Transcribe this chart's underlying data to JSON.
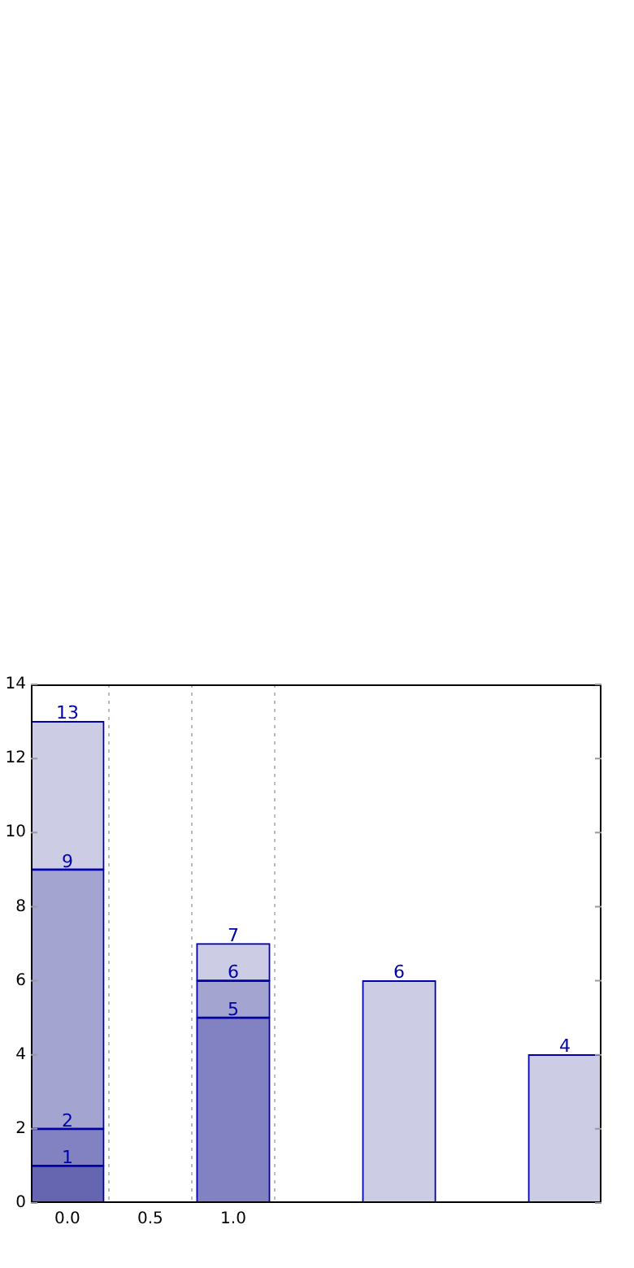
{
  "chart_data": {
    "type": "bar",
    "x": [
      0,
      1,
      2,
      3
    ],
    "stacked": true,
    "series": [
      {
        "colors": [
          "#6666b0",
          "#8282c2",
          "#cccce5",
          "#cccce5"
        ],
        "values": [
          1,
          5,
          6,
          4
        ]
      },
      {
        "colors": [
          "#8282c2",
          "#a3a5d0",
          null,
          null
        ],
        "values": [
          1,
          1,
          null,
          null
        ]
      },
      {
        "colors": [
          "#a3a5d0",
          "#cccce5",
          null,
          null
        ],
        "values": [
          7,
          1,
          null,
          null
        ]
      },
      {
        "colors": [
          "#cccce5",
          null,
          null,
          null
        ],
        "values": [
          4,
          null,
          null,
          null
        ]
      }
    ],
    "annotations": [
      {
        "text": "1",
        "x": 0,
        "y": 1
      },
      {
        "text": "2",
        "x": 0,
        "y": 2
      },
      {
        "text": "9",
        "x": 0,
        "y": 9
      },
      {
        "text": "13",
        "x": 0,
        "y": 13
      },
      {
        "text": "5",
        "x": 1,
        "y": 5
      },
      {
        "text": "6",
        "x": 1,
        "y": 6
      },
      {
        "text": "7",
        "x": 1,
        "y": 7
      },
      {
        "text": "6",
        "x": 2,
        "y": 6
      },
      {
        "text": "4",
        "x": 3,
        "y": 4
      }
    ],
    "xlim": [
      -0.22,
      3.22
    ],
    "xticks": [
      {
        "value": 0,
        "label": "0.0"
      },
      {
        "value": 0.5,
        "label": "0.5"
      },
      {
        "value": 1,
        "label": "1.0"
      }
    ],
    "ylim": [
      0,
      14
    ],
    "yticks": [
      0,
      2,
      4,
      6,
      8,
      10,
      12,
      14
    ],
    "grid": "x",
    "legend": false
  }
}
